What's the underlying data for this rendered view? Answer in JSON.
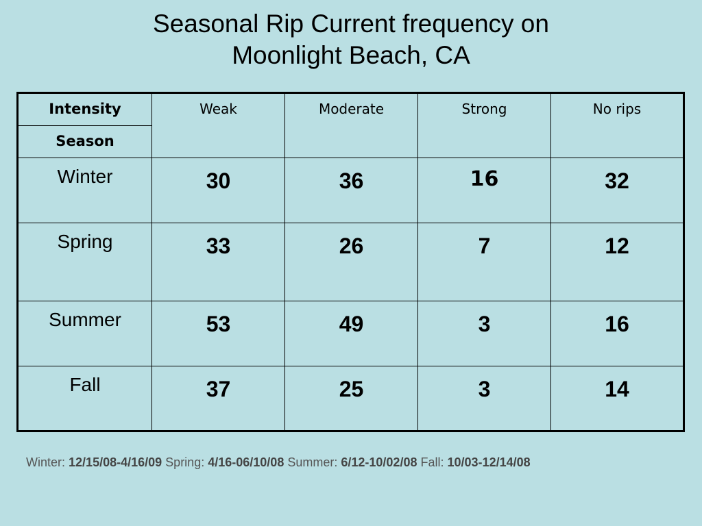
{
  "title": {
    "line1": "Seasonal Rip Current frequency on",
    "line2": "Moonlight Beach, CA"
  },
  "table": {
    "corner_top": "Intensity",
    "corner_bottom": "Season",
    "columns": [
      "Weak",
      "Moderate",
      "Strong",
      "No rips"
    ],
    "rows": [
      {
        "season": "Winter",
        "values": [
          "30",
          "36",
          "16",
          "32"
        ]
      },
      {
        "season": "Spring",
        "values": [
          "33",
          "26",
          "7",
          "12"
        ]
      },
      {
        "season": "Summer",
        "values": [
          "53",
          "49",
          "3",
          "16"
        ]
      },
      {
        "season": "Fall",
        "values": [
          "37",
          "25",
          "3",
          "14"
        ]
      }
    ]
  },
  "footer": {
    "winter_label": "Winter:",
    "winter_range": "12/15/08-4/16/09",
    "spring_label": "Spring:",
    "spring_range": "4/16-06/10/08",
    "summer_label": "Summer:",
    "summer_range": "6/12-10/02/08",
    "fall_label": "Fall:",
    "fall_range": "10/03-12/14/08"
  },
  "colors": {
    "background": "#badfe3",
    "border": "#000000",
    "footer_text": "#555555"
  }
}
